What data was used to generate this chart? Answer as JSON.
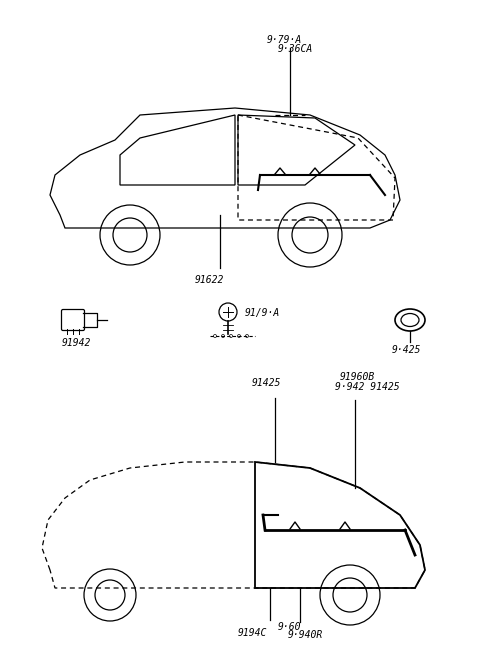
{
  "background_color": "#ffffff",
  "line_color": "#000000",
  "fig_width": 4.8,
  "fig_height": 6.57,
  "dpi": 100,
  "labels": {
    "top_label1": "9·79·A",
    "top_label2": "9·36CA",
    "mid_label1": "91622",
    "part_label1": "91942",
    "part_label2": "91/9·A",
    "part_label3": "9·425",
    "bot_label1": "91425",
    "bot_label2": "91960B",
    "bot_label3": "9·942 91425",
    "bot_label4": "9194C",
    "bot_label5": "9·60",
    "bot_label6": "9·940R"
  }
}
